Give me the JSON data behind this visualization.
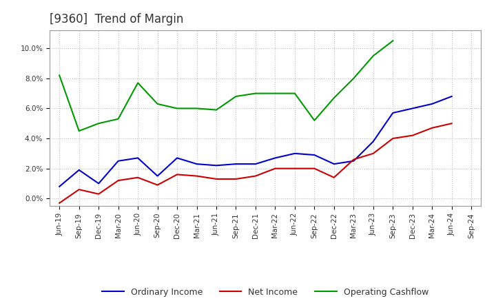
{
  "title": "[9360]  Trend of Margin",
  "x_labels": [
    "Jun-19",
    "Sep-19",
    "Dec-19",
    "Mar-20",
    "Jun-20",
    "Sep-20",
    "Dec-20",
    "Mar-21",
    "Jun-21",
    "Sep-21",
    "Dec-21",
    "Mar-22",
    "Jun-22",
    "Sep-22",
    "Dec-22",
    "Mar-23",
    "Jun-23",
    "Sep-23",
    "Dec-23",
    "Mar-24",
    "Jun-24",
    "Sep-24"
  ],
  "ordinary_income": [
    0.008,
    0.019,
    0.01,
    0.025,
    0.027,
    0.015,
    0.027,
    0.023,
    0.022,
    0.023,
    0.023,
    0.027,
    0.03,
    0.029,
    0.023,
    0.025,
    0.038,
    0.057,
    0.06,
    0.063,
    0.068,
    null
  ],
  "net_income": [
    -0.003,
    0.006,
    0.003,
    0.012,
    0.014,
    0.009,
    0.016,
    0.015,
    0.013,
    0.013,
    0.015,
    0.02,
    0.02,
    0.02,
    0.014,
    0.026,
    0.03,
    0.04,
    0.042,
    0.047,
    0.05,
    null
  ],
  "operating_cashflow": [
    0.082,
    0.045,
    0.05,
    0.053,
    0.077,
    0.063,
    0.06,
    0.06,
    0.059,
    0.068,
    0.07,
    0.07,
    0.07,
    0.052,
    0.067,
    0.08,
    0.095,
    0.105,
    null,
    null,
    null,
    null
  ],
  "ylim": [
    -0.005,
    0.112
  ],
  "yticks": [
    0.0,
    0.02,
    0.04,
    0.06,
    0.08,
    0.1
  ],
  "ordinary_income_color": "#0000cc",
  "net_income_color": "#cc0000",
  "operating_cashflow_color": "#009900",
  "plot_bg_color": "#ffffff",
  "fig_bg_color": "#ffffff",
  "grid_color": "#bbbbbb",
  "title_fontsize": 12,
  "tick_fontsize": 7.5,
  "legend_labels": [
    "Ordinary Income",
    "Net Income",
    "Operating Cashflow"
  ]
}
